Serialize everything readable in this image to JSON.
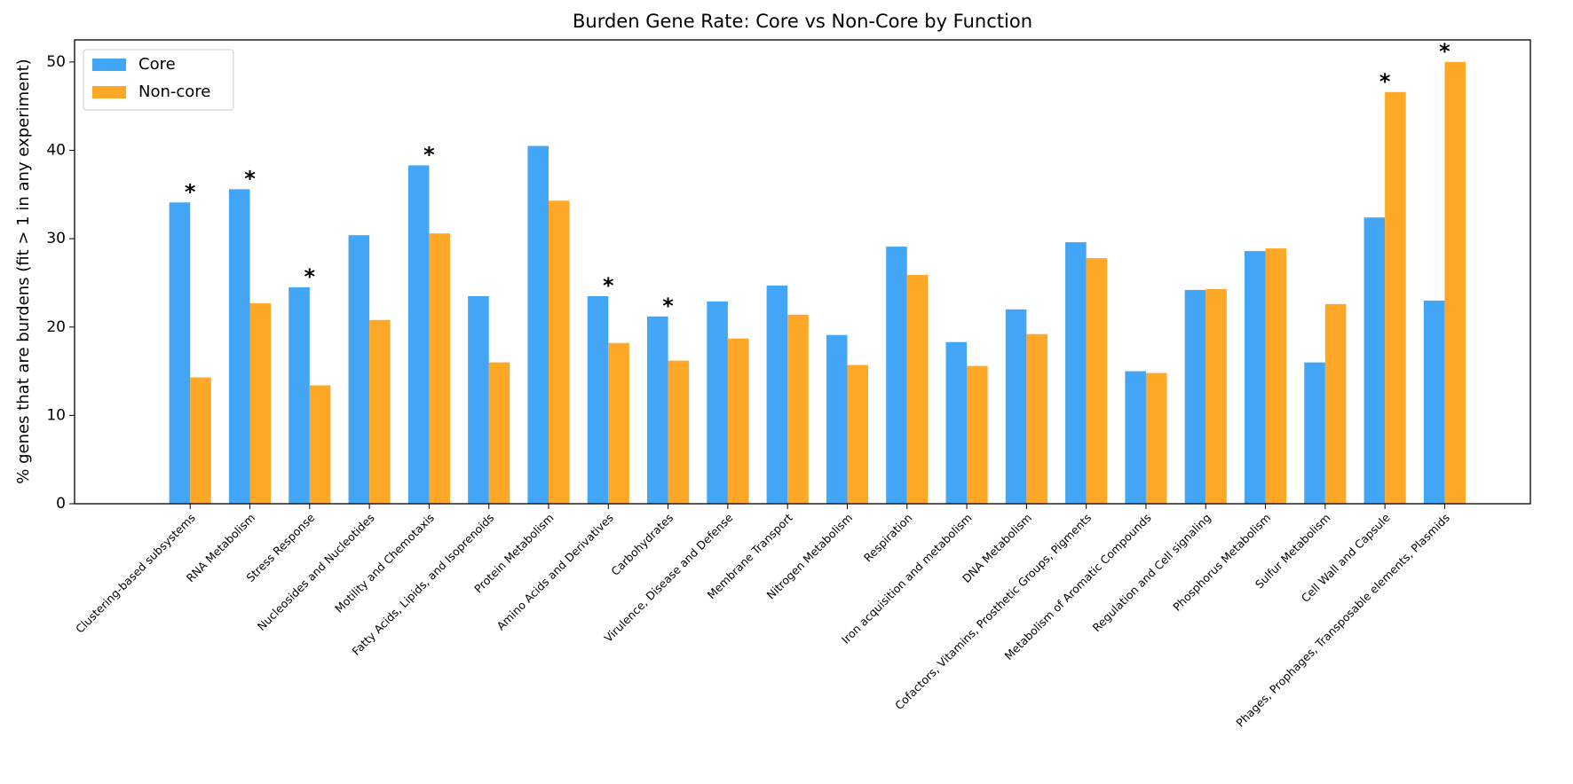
{
  "chart_data": {
    "type": "bar",
    "title": "Burden Gene Rate: Core vs Non-Core by Function",
    "y_label": "% genes that are burdens (fit > 1 in any experiment)",
    "categories": [
      "Clustering-based subsystems",
      "RNA Metabolism",
      "Stress Response",
      "Nucleosides and Nucleotides",
      "Motility and Chemotaxis",
      "Fatty Acids, Lipids, and Isoprenoids",
      "Protein Metabolism",
      "Amino Acids and Derivatives",
      "Carbohydrates",
      "Virulence, Disease and Defense",
      "Membrane Transport",
      "Nitrogen Metabolism",
      "Respiration",
      "Iron acquisition and metabolism",
      "DNA Metabolism",
      "Cofactors, Vitamins, Prosthetic Groups, Pigments",
      "Metabolism of Aromatic Compounds",
      "Regulation and Cell signaling",
      "Phosphorus Metabolism",
      "Sulfur Metabolism",
      "Cell Wall and Capsule",
      "Phages, Prophages, Transposable elements, Plasmids"
    ],
    "series": [
      {
        "name": "Core",
        "color": "#42a5f5",
        "values": [
          34.1,
          35.6,
          24.5,
          30.4,
          38.3,
          23.5,
          40.5,
          23.5,
          21.2,
          22.9,
          24.7,
          19.1,
          29.1,
          18.3,
          22.0,
          29.6,
          15.0,
          24.2,
          28.6,
          16.0,
          32.4,
          23.0
        ]
      },
      {
        "name": "Non-core",
        "color": "#ffa726",
        "values": [
          14.3,
          22.7,
          13.4,
          20.8,
          30.6,
          16.0,
          34.3,
          18.2,
          16.2,
          18.7,
          21.4,
          15.7,
          25.9,
          15.6,
          19.2,
          27.8,
          14.8,
          24.3,
          28.9,
          22.6,
          46.6,
          50.0
        ]
      }
    ],
    "significance": [
      "*",
      "*",
      "*",
      null,
      "*",
      null,
      null,
      "*",
      "*",
      null,
      null,
      null,
      null,
      null,
      null,
      null,
      null,
      null,
      null,
      null,
      "*",
      "*"
    ],
    "ylim": [
      0,
      52.5
    ],
    "yticks": [
      0,
      10,
      20,
      30,
      40,
      50
    ],
    "grid": false,
    "legend": "upper left"
  }
}
